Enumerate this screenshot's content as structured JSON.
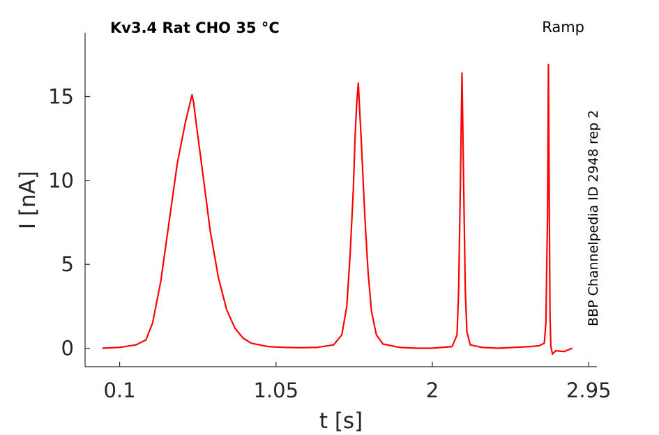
{
  "chart_data": {
    "type": "line",
    "title": "Kv3.4  Rat  CHO  35 °C",
    "protocol_label": "Ramp",
    "side_label": "BBP Channelpedia ID 2948 rep 2",
    "xlabel": "t [s]",
    "ylabel": "I [nA]",
    "xlim": [
      -0.11,
      3.0
    ],
    "ylim": [
      -1.1,
      18.8
    ],
    "xticks": [
      0.1,
      1.05,
      2,
      2.95
    ],
    "xtick_labels": [
      "0.1",
      "1.05",
      "2",
      "2.95"
    ],
    "yticks": [
      0,
      5,
      10,
      15
    ],
    "ytick_labels": [
      "0",
      "5",
      "10",
      "15"
    ],
    "grid": false,
    "color": "#ff0000",
    "series": [
      {
        "x": [
          -0.005,
          0.1,
          0.2,
          0.26,
          0.3,
          0.35,
          0.4,
          0.45,
          0.5,
          0.52,
          0.54,
          0.55,
          0.56,
          0.58,
          0.6,
          0.65,
          0.7,
          0.75,
          0.8,
          0.85,
          0.9,
          1.0,
          1.1,
          1.2,
          1.3,
          1.4,
          1.45,
          1.48,
          1.5,
          1.52,
          1.53,
          1.54,
          1.55,
          1.57,
          1.59,
          1.61,
          1.63,
          1.66,
          1.7,
          1.8,
          1.9,
          2.0,
          2.12,
          2.15,
          2.16,
          2.17,
          2.18,
          2.19,
          2.2,
          2.21,
          2.23,
          2.3,
          2.4,
          2.5,
          2.6,
          2.65,
          2.68,
          2.69,
          2.7,
          2.705,
          2.71,
          2.715,
          2.72,
          2.73,
          2.75,
          2.8,
          2.85
        ],
        "y": [
          0.0,
          0.05,
          0.2,
          0.5,
          1.5,
          4.0,
          7.5,
          11.0,
          13.5,
          14.3,
          15.1,
          14.6,
          13.8,
          12.3,
          10.8,
          7.0,
          4.2,
          2.3,
          1.2,
          0.6,
          0.3,
          0.1,
          0.05,
          0.03,
          0.05,
          0.2,
          0.8,
          2.5,
          5.5,
          9.5,
          12.5,
          14.5,
          15.8,
          12.0,
          7.8,
          4.5,
          2.2,
          0.8,
          0.25,
          0.05,
          0.0,
          0.0,
          0.1,
          0.8,
          3.5,
          9.5,
          16.4,
          10.0,
          3.5,
          1.0,
          0.2,
          0.05,
          0.0,
          0.05,
          0.1,
          0.15,
          0.3,
          1.5,
          8.0,
          16.9,
          9.0,
          2.0,
          0.1,
          -0.35,
          -0.15,
          -0.2,
          0.0
        ]
      }
    ]
  }
}
